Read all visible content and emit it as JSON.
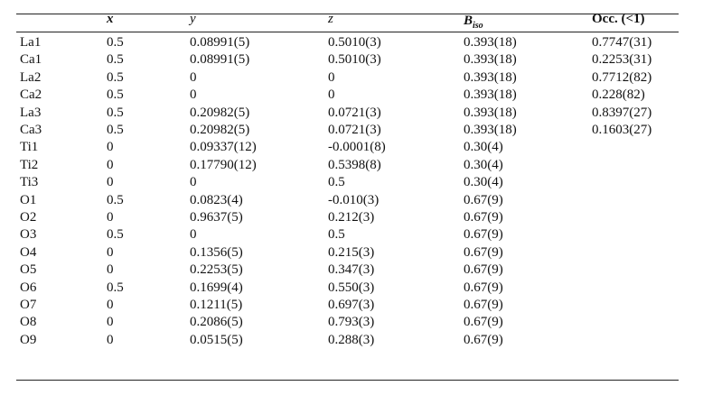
{
  "table": {
    "header": [
      "x",
      "y",
      "z",
      {
        "main": "B",
        "sub": "iso"
      },
      "Occ. (<1)"
    ],
    "rows": [
      [
        "La1",
        "0.5",
        "0.08991(5)",
        "0.5010(3)",
        "0.393(18)",
        "0.7747(31)"
      ],
      [
        "Ca1",
        "0.5",
        "0.08991(5)",
        "0.5010(3)",
        "0.393(18)",
        "0.2253(31)"
      ],
      [
        "La2",
        "0.5",
        "0",
        "0",
        "0.393(18)",
        "0.7712(82)"
      ],
      [
        "Ca2",
        "0.5",
        "0",
        "0",
        "0.393(18)",
        "0.228(82)"
      ],
      [
        "La3",
        "0.5",
        "0.20982(5)",
        "0.0721(3)",
        "0.393(18)",
        "0.8397(27)"
      ],
      [
        "Ca3",
        "0.5",
        "0.20982(5)",
        "0.0721(3)",
        "0.393(18)",
        "0.1603(27)"
      ],
      [
        "Ti1",
        "0",
        "0.09337(12)",
        "-0.0001(8)",
        "0.30(4)"
      ],
      [
        "Ti2",
        "0",
        "0.17790(12)",
        "0.5398(8)",
        "0.30(4)"
      ],
      [
        "Ti3",
        "0",
        "0",
        "0.5",
        "0.30(4)"
      ],
      [
        "O1",
        "0.5",
        "0.0823(4)",
        "-0.010(3)",
        "0.67(9)"
      ],
      [
        "O2",
        "0",
        "0.9637(5)",
        "0.212(3)",
        "0.67(9)"
      ],
      [
        "O3",
        "0.5",
        "0",
        "0.5",
        "0.67(9)"
      ],
      [
        "O4",
        "0",
        "0.1356(5)",
        "0.215(3)",
        "0.67(9)"
      ],
      [
        "O5",
        "0",
        "0.2253(5)",
        "0.347(3)",
        "0.67(9)"
      ],
      [
        "O6",
        "0.5",
        "0.1699(4)",
        "0.550(3)",
        "0.67(9)"
      ],
      [
        "O7",
        "0",
        "0.1211(5)",
        "0.697(3)",
        "0.67(9)"
      ],
      [
        "O8",
        "0",
        "0.2086(5)",
        "0.793(3)",
        "0.67(9)"
      ],
      [
        "O9",
        "0",
        "0.0515(5)",
        "0.288(3)",
        "0.67(9)"
      ]
    ]
  }
}
